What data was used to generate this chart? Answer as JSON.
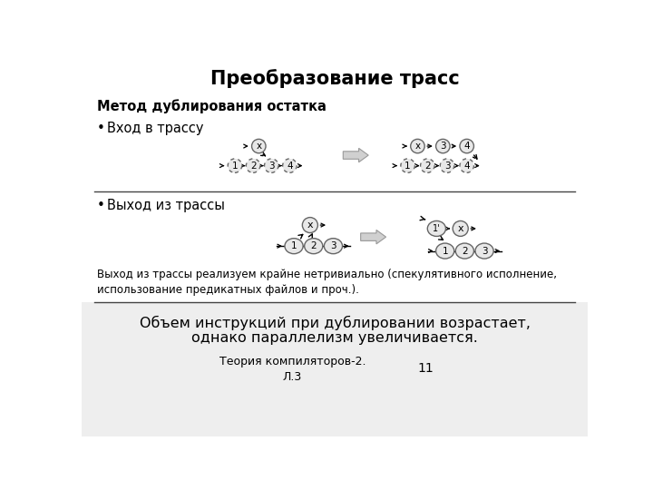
{
  "title": "Преобразование трасс",
  "subtitle_bold": "Метод дублирования остатка",
  "bullet1": "Вход в трассу",
  "bullet2": "Выход из трассы",
  "note_text": "Выход из трассы реализуем крайне нетривиально (спекулятивного исполнение,\nиспользование предикатных файлов и проч.).",
  "footer_text1": "Объем инструкций при дублировании возрастает,",
  "footer_text2": "однако параллелизм увеличивается.",
  "slide_label": "Теория компиляторов-2.\nЛ.3",
  "slide_number": "11",
  "bg_color": "#ffffff",
  "circle_face": "#e8e8e8",
  "circle_edge": "#666666",
  "arrow_color": "#000000",
  "divider_color": "#444444",
  "footer_bg": "#eeeeee",
  "big_arrow_color": "#c0c0c0"
}
